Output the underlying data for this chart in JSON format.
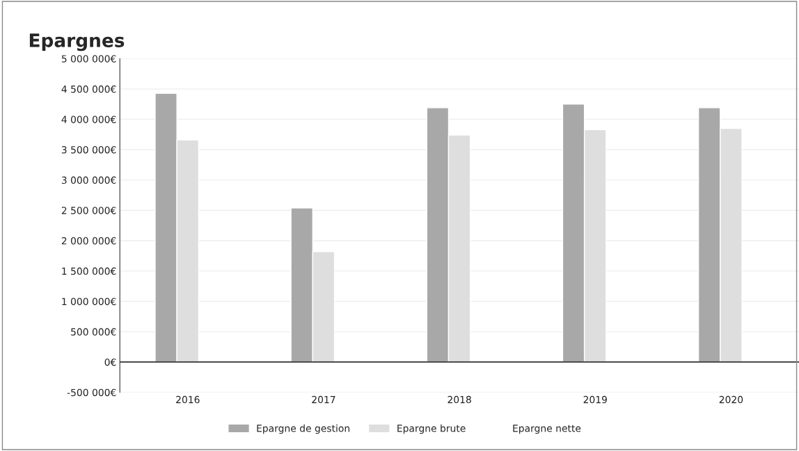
{
  "chart_data": {
    "type": "bar",
    "title": "Epargnes",
    "categories": [
      "2016",
      "2017",
      "2018",
      "2019",
      "2020"
    ],
    "series": [
      {
        "name": "Epargne de gestion",
        "color": "#a8a8a8",
        "values": [
          4430000,
          2540000,
          4190000,
          4250000,
          4190000
        ]
      },
      {
        "name": "Epargne brute",
        "color": "#dedede",
        "values": [
          3660000,
          1820000,
          3740000,
          3830000,
          3850000
        ]
      },
      {
        "name": "Epargne nette",
        "values": [
          null,
          null,
          null,
          null,
          null
        ]
      }
    ],
    "ylim": [
      -500000,
      5000000
    ],
    "yticks": [
      {
        "value": -500000,
        "label": "-500 000€"
      },
      {
        "value": 0,
        "label": "0€"
      },
      {
        "value": 500000,
        "label": "500 000€"
      },
      {
        "value": 1000000,
        "label": "1 000 000€"
      },
      {
        "value": 1500000,
        "label": "1 500 000€"
      },
      {
        "value": 2000000,
        "label": "2 000 000€"
      },
      {
        "value": 2500000,
        "label": "2 500 000€"
      },
      {
        "value": 3000000,
        "label": "3 000 000€"
      },
      {
        "value": 3500000,
        "label": "3 500 000€"
      },
      {
        "value": 4000000,
        "label": "4 000 000€"
      },
      {
        "value": 4500000,
        "label": "4 500 000€"
      },
      {
        "value": 5000000,
        "label": "5 000 000€"
      }
    ],
    "grid": "y",
    "legend": "bottom"
  }
}
